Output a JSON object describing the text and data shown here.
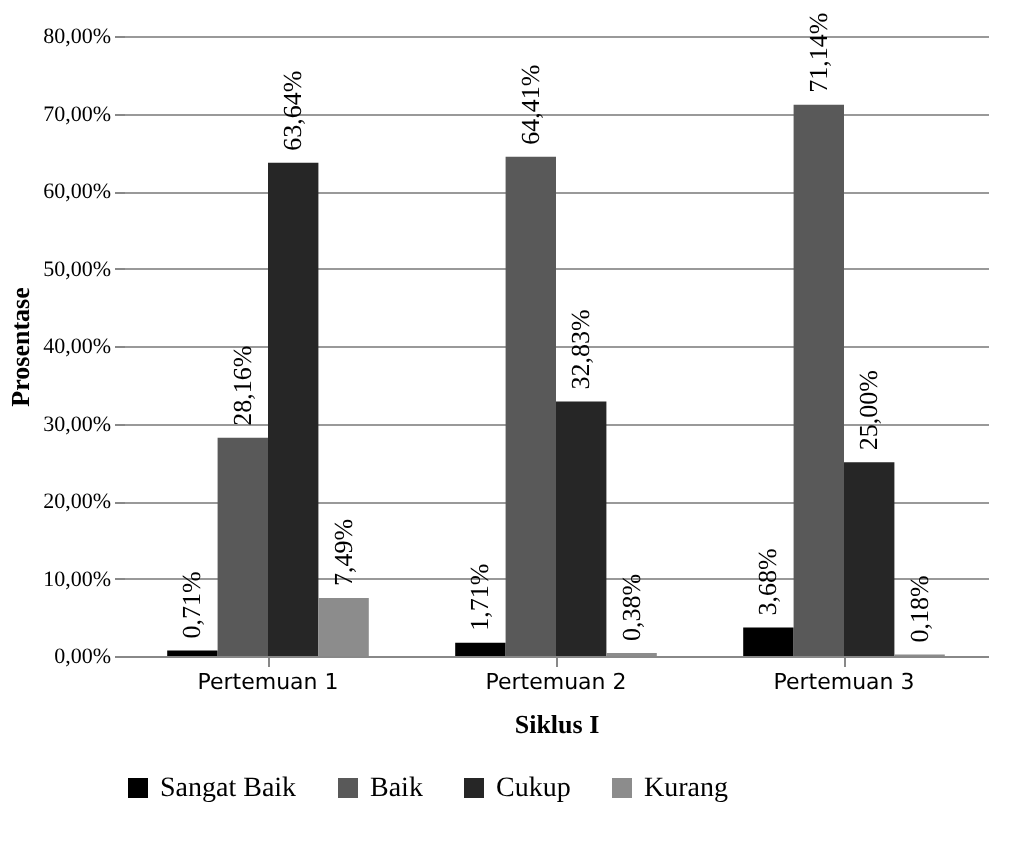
{
  "chart_data": {
    "type": "bar",
    "xlabel": "Siklus I",
    "ylabel": "Prosentase",
    "categories": [
      "Pertemuan 1",
      "Pertemuan 2",
      "Pertemuan 3"
    ],
    "series": [
      {
        "name": "Sangat Baik",
        "color": "#000000",
        "values": [
          0.71,
          1.71,
          3.68
        ],
        "value_labels": [
          "0,71%",
          "1,71%",
          "3,68%"
        ]
      },
      {
        "name": "Baik",
        "color": "#595959",
        "values": [
          28.16,
          64.41,
          71.14
        ],
        "value_labels": [
          "28,16%",
          "64,41%",
          "71,14%"
        ]
      },
      {
        "name": "Cukup",
        "color": "#262626",
        "values": [
          63.64,
          32.83,
          25.0
        ],
        "value_labels": [
          "63,64%",
          "32,83%",
          "25,00%"
        ]
      },
      {
        "name": "Kurang",
        "color": "#8c8c8c",
        "values": [
          7.49,
          0.38,
          0.18
        ],
        "value_labels": [
          "7,49%",
          "0,38%",
          "0,18%"
        ]
      }
    ],
    "ylim": [
      0,
      80
    ],
    "yticks": [
      {
        "value": 0,
        "label": "0,00%"
      },
      {
        "value": 10,
        "label": "10,00%"
      },
      {
        "value": 20,
        "label": "20,00%"
      },
      {
        "value": 30,
        "label": "30,00%"
      },
      {
        "value": 40,
        "label": "40,00%"
      },
      {
        "value": 50,
        "label": "50,00%"
      },
      {
        "value": 60,
        "label": "60,00%"
      },
      {
        "value": 70,
        "label": "70,00%"
      },
      {
        "value": 80,
        "label": "80,00%"
      }
    ],
    "grid": "y",
    "legend": "bottom"
  }
}
